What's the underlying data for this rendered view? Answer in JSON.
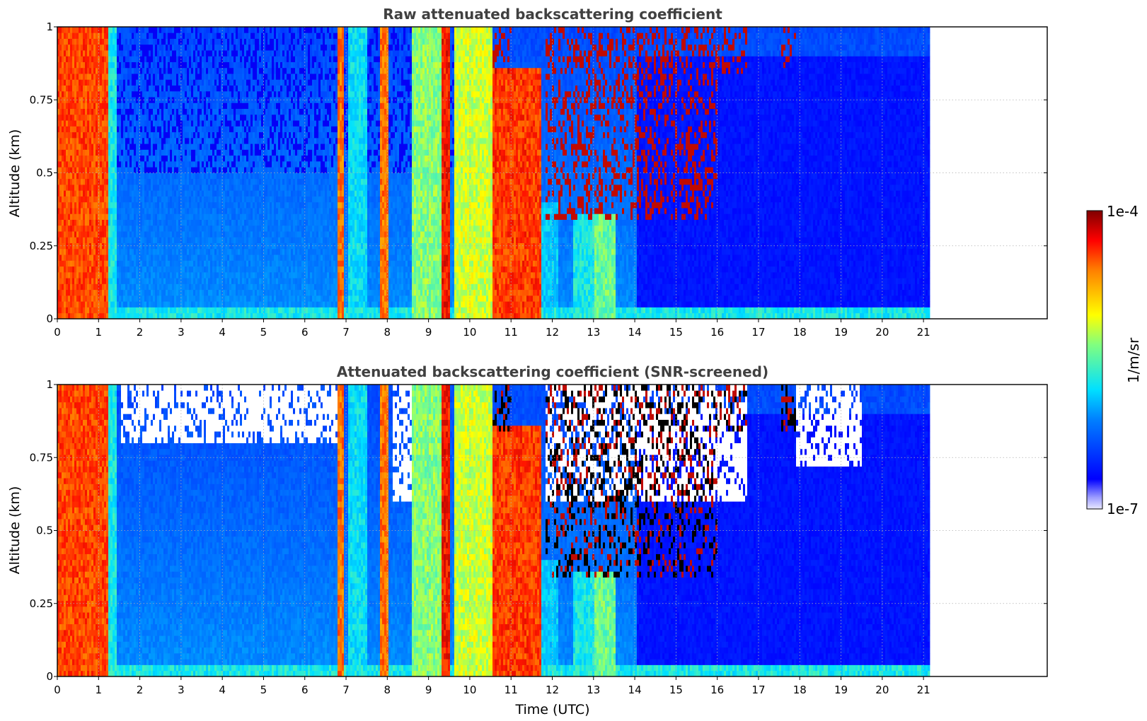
{
  "chart_data": [
    {
      "type": "heatmap",
      "title": "Raw attenuated backscattering coefficient",
      "xlabel": "",
      "ylabel": "Altitude (km)",
      "xlim": [
        0,
        24
      ],
      "ylim": [
        0,
        1
      ],
      "x_ticks": [
        "0",
        "1",
        "2",
        "3",
        "4",
        "5",
        "6",
        "7",
        "8",
        "9",
        "10",
        "11",
        "12",
        "13",
        "14",
        "15",
        "16",
        "17",
        "18",
        "19",
        "20",
        "21"
      ],
      "y_ticks": [
        "0",
        "0.25",
        "0.5",
        "0.75",
        "1"
      ],
      "y_tick_values": [
        0,
        0.25,
        0.5,
        0.75,
        1
      ],
      "data_time_range": [
        0,
        21.15
      ],
      "grid": "dotted",
      "colormap": "jet",
      "color_scale": "log",
      "snr_screened": false,
      "features": [
        {
          "t0": 0.0,
          "t1": 1.2,
          "level": 0.86,
          "top": 1.0
        },
        {
          "t0": 1.2,
          "t1": 1.4,
          "level": 0.5,
          "top": 1.0
        },
        {
          "t0": 6.75,
          "t1": 6.9,
          "level": 0.82,
          "top": 1.0
        },
        {
          "t0": 7.0,
          "t1": 7.5,
          "level": 0.48,
          "top": 1.0
        },
        {
          "t0": 7.8,
          "t1": 8.0,
          "level": 0.82,
          "top": 1.0
        },
        {
          "t0": 8.55,
          "t1": 9.3,
          "level": 0.6,
          "top": 1.0
        },
        {
          "t0": 9.3,
          "t1": 9.5,
          "level": 0.9,
          "top": 1.0
        },
        {
          "t0": 9.6,
          "t1": 10.5,
          "level": 0.65,
          "top": 1.0
        },
        {
          "t0": 10.5,
          "t1": 11.7,
          "level": 0.87,
          "top": 0.85
        },
        {
          "t0": 11.7,
          "t1": 12.1,
          "level": 0.45,
          "top": 0.4
        },
        {
          "t0": 12.5,
          "t1": 13.0,
          "level": 0.5,
          "top": 0.35
        },
        {
          "t0": 13.0,
          "t1": 13.5,
          "level": 0.58,
          "top": 0.35
        }
      ],
      "clouds": [
        {
          "t0": 10.5,
          "t1": 11.0,
          "base": 0.85,
          "top": 1.0
        },
        {
          "t0": 11.8,
          "t1": 16.0,
          "base": 0.35,
          "top": 1.0
        },
        {
          "t0": 16.0,
          "t1": 16.7,
          "base": 0.85,
          "top": 1.0
        },
        {
          "t0": 17.5,
          "t1": 17.9,
          "base": 0.85,
          "top": 1.0
        }
      ]
    },
    {
      "type": "heatmap",
      "title": "Attenuated backscattering coefficient (SNR-screened)",
      "xlabel": "Time (UTC)",
      "ylabel": "Altitude (km)",
      "xlim": [
        0,
        24
      ],
      "ylim": [
        0,
        1
      ],
      "x_ticks": [
        "0",
        "1",
        "2",
        "3",
        "4",
        "5",
        "6",
        "7",
        "8",
        "9",
        "10",
        "11",
        "12",
        "13",
        "14",
        "15",
        "16",
        "17",
        "18",
        "19",
        "20",
        "21"
      ],
      "y_ticks": [
        "0",
        "0.25",
        "0.5",
        "0.75",
        "1"
      ],
      "y_tick_values": [
        0,
        0.25,
        0.5,
        0.75,
        1
      ],
      "data_time_range": [
        0,
        21.15
      ],
      "grid": "dotted",
      "colormap": "jet",
      "color_scale": "log",
      "snr_screened": true,
      "features": [
        {
          "t0": 0.0,
          "t1": 1.2,
          "level": 0.86,
          "top": 1.0
        },
        {
          "t0": 1.2,
          "t1": 1.4,
          "level": 0.5,
          "top": 1.0
        },
        {
          "t0": 6.75,
          "t1": 6.9,
          "level": 0.82,
          "top": 1.0
        },
        {
          "t0": 7.0,
          "t1": 7.5,
          "level": 0.48,
          "top": 1.0
        },
        {
          "t0": 7.8,
          "t1": 8.0,
          "level": 0.82,
          "top": 1.0
        },
        {
          "t0": 8.55,
          "t1": 9.3,
          "level": 0.6,
          "top": 1.0
        },
        {
          "t0": 9.3,
          "t1": 9.5,
          "level": 0.9,
          "top": 1.0
        },
        {
          "t0": 9.6,
          "t1": 10.5,
          "level": 0.65,
          "top": 1.0
        },
        {
          "t0": 10.5,
          "t1": 11.7,
          "level": 0.87,
          "top": 0.85
        },
        {
          "t0": 11.7,
          "t1": 12.1,
          "level": 0.45,
          "top": 0.4
        },
        {
          "t0": 12.5,
          "t1": 13.0,
          "level": 0.5,
          "top": 0.35
        },
        {
          "t0": 13.0,
          "t1": 13.5,
          "level": 0.58,
          "top": 0.35
        }
      ],
      "clouds": [
        {
          "t0": 10.5,
          "t1": 11.0,
          "base": 0.85,
          "top": 1.0
        },
        {
          "t0": 11.8,
          "t1": 16.0,
          "base": 0.35,
          "top": 1.0
        },
        {
          "t0": 16.0,
          "t1": 16.7,
          "base": 0.85,
          "top": 1.0
        },
        {
          "t0": 17.5,
          "t1": 17.9,
          "base": 0.85,
          "top": 1.0
        }
      ],
      "screened_regions": [
        {
          "t0": 1.5,
          "t1": 6.8,
          "base": 0.8,
          "top": 1.0
        },
        {
          "t0": 8.1,
          "t1": 8.55,
          "base": 0.6,
          "top": 1.0
        },
        {
          "t0": 11.8,
          "t1": 16.7,
          "base": 0.6,
          "top": 1.0
        },
        {
          "t0": 17.9,
          "t1": 19.5,
          "base": 0.72,
          "top": 1.0
        }
      ]
    }
  ],
  "colorbar": {
    "label": "1/m/sr",
    "max_label": "1e-4",
    "min_label": "1e-7",
    "colormap": "jet"
  }
}
